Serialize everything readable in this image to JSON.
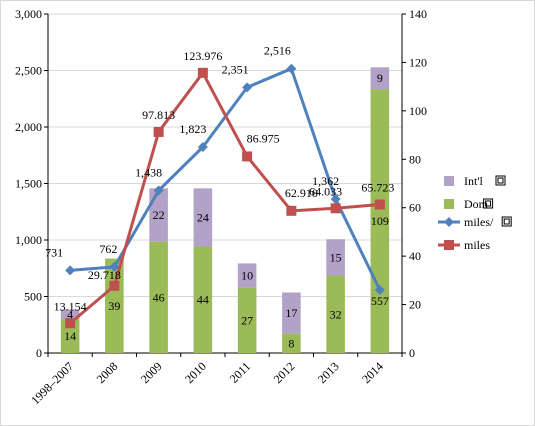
{
  "chart_data": {
    "type": "bar",
    "categories": [
      "1998–2007",
      "2008",
      "2009",
      "2010",
      "2011",
      "2012",
      "2013",
      "2014"
    ],
    "y_left": {
      "ylim": [
        0,
        3000
      ],
      "ticks": [
        "0",
        "500",
        "1,000",
        "1,500",
        "2,000",
        "2,500",
        "3,000"
      ]
    },
    "y_right": {
      "ylim": [
        0,
        140
      ],
      "ticks": [
        "0",
        "20",
        "40",
        "60",
        "80",
        "100",
        "120",
        "140"
      ]
    },
    "grid": true,
    "legend_position": "right",
    "series": [
      {
        "name": "Int'l",
        "kind": "stacked-bar",
        "axis": "right",
        "color": "#b3a2c7",
        "values": [
          4,
          0,
          22,
          24,
          10,
          17,
          15,
          9
        ],
        "labels": [
          "4",
          "",
          "22",
          "24",
          "10",
          "17",
          "15",
          "9"
        ]
      },
      {
        "name": "Dom",
        "kind": "stacked-bar",
        "axis": "right",
        "color": "#9bbb59",
        "values": [
          14,
          39,
          46,
          44,
          27,
          8,
          32,
          109
        ],
        "labels": [
          "14",
          "39",
          "46",
          "44",
          "27",
          "8",
          "32",
          "109"
        ]
      },
      {
        "name": "miles/",
        "kind": "line",
        "axis": "left",
        "color": "#4f81bd",
        "marker": "diamond",
        "values": [
          731,
          762,
          1438,
          1823,
          2351,
          2516,
          1362,
          557
        ],
        "labels": [
          "731",
          "762",
          "1,438",
          "1,823",
          "2,351",
          "2,516",
          "1,362",
          "557"
        ]
      },
      {
        "name": "miles",
        "kind": "line",
        "axis": "left",
        "color": "#c0504d",
        "marker": "square",
        "values": [
          13154,
          29718,
          97813,
          123976,
          86975,
          62910,
          64033,
          65723
        ],
        "labels": [
          "13.154",
          "29.718",
          "97.813",
          "123.976",
          "86.975",
          "62.910",
          "64.033",
          "65.723"
        ]
      }
    ],
    "legend": [
      "Int'l",
      "Dom",
      "miles/",
      "miles"
    ]
  }
}
